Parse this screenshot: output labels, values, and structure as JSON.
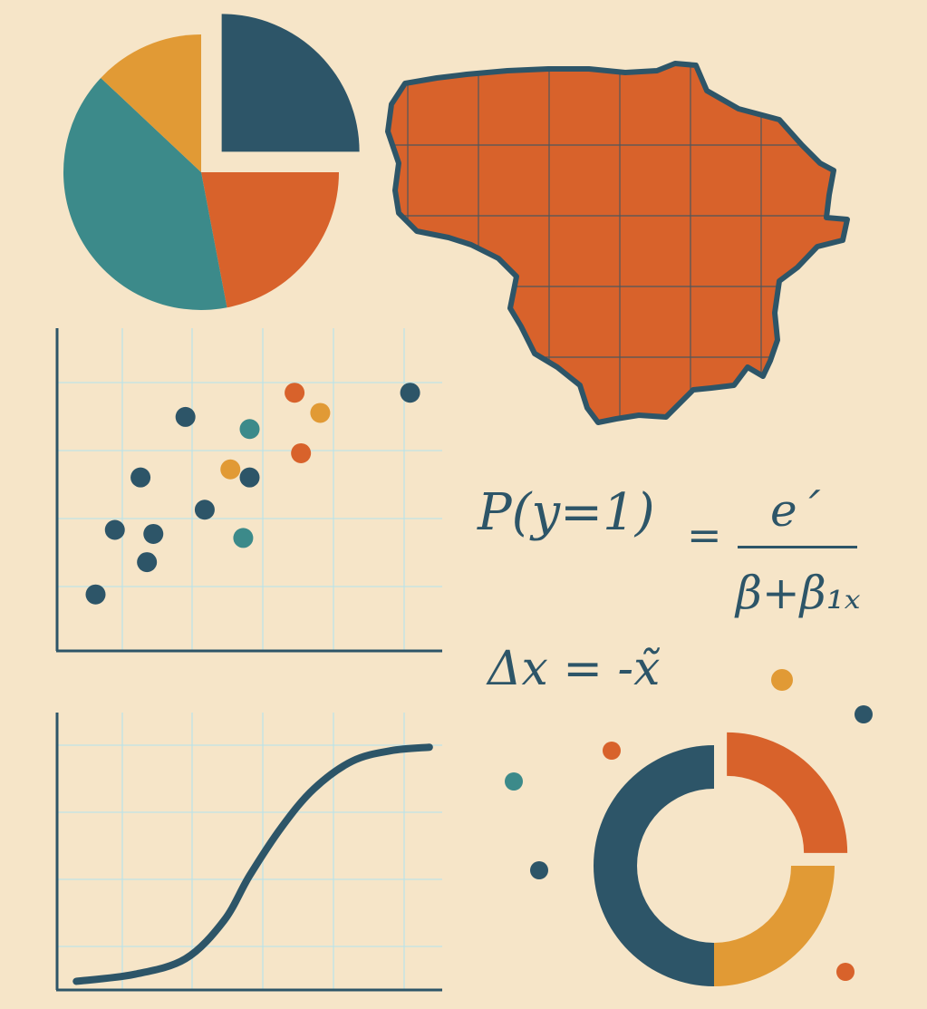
{
  "colors": {
    "background": "#f6e5c8",
    "navy": "#2d5568",
    "teal": "#3c8a8a",
    "orange": "#d8622b",
    "gold": "#e19a35",
    "grid": "#bfe3e6"
  },
  "chart_data": [
    {
      "type": "pie",
      "slices": [
        {
          "color": "navy",
          "value": 25,
          "exploded": true
        },
        {
          "color": "orange",
          "value": 22
        },
        {
          "color": "teal",
          "value": 40
        },
        {
          "color": "gold",
          "value": 13
        }
      ]
    },
    {
      "type": "scatter",
      "xlim": [
        0,
        6
      ],
      "ylim": [
        0,
        8
      ],
      "grid": true,
      "points": [
        {
          "x": 0.6,
          "y": 1.4,
          "color": "navy"
        },
        {
          "x": 1.4,
          "y": 2.2,
          "color": "navy"
        },
        {
          "x": 0.9,
          "y": 3.0,
          "color": "navy"
        },
        {
          "x": 1.5,
          "y": 2.9,
          "color": "navy"
        },
        {
          "x": 1.3,
          "y": 4.3,
          "color": "navy"
        },
        {
          "x": 2.3,
          "y": 3.5,
          "color": "navy"
        },
        {
          "x": 2.0,
          "y": 5.8,
          "color": "navy"
        },
        {
          "x": 3.0,
          "y": 4.3,
          "color": "navy"
        },
        {
          "x": 5.5,
          "y": 6.4,
          "color": "navy"
        },
        {
          "x": 2.7,
          "y": 4.5,
          "color": "gold"
        },
        {
          "x": 4.1,
          "y": 5.9,
          "color": "gold"
        },
        {
          "x": 2.9,
          "y": 2.8,
          "color": "teal"
        },
        {
          "x": 3.0,
          "y": 5.5,
          "color": "teal"
        },
        {
          "x": 3.7,
          "y": 6.4,
          "color": "orange"
        },
        {
          "x": 3.8,
          "y": 4.9,
          "color": "orange"
        }
      ]
    },
    {
      "type": "line",
      "xlim": [
        0,
        6
      ],
      "ylim": [
        0,
        8
      ],
      "grid": true,
      "series": [
        {
          "color": "navy",
          "x": [
            0.3,
            1.2,
            2.0,
            2.6,
            3.0,
            3.5,
            4.0,
            4.6,
            5.2,
            5.8
          ],
          "y": [
            0.25,
            0.45,
            0.9,
            2.0,
            3.3,
            4.7,
            5.8,
            6.6,
            6.9,
            7.0
          ]
        }
      ]
    },
    {
      "type": "pie",
      "donut": true,
      "slices": [
        {
          "color": "orange",
          "value": 25,
          "exploded": true
        },
        {
          "color": "gold",
          "value": 25
        },
        {
          "color": "navy",
          "value": 50
        }
      ]
    }
  ],
  "equations": {
    "eq1_lhs": "P(y=1)",
    "eq1_equals": "=",
    "eq1_numerator": "e´",
    "eq1_denominator": "β+β₁ₓ",
    "eq2": "Δx = -x̃"
  },
  "decor_dots": [
    {
      "color": "gold"
    },
    {
      "color": "navy"
    },
    {
      "color": "orange"
    },
    {
      "color": "teal"
    },
    {
      "color": "navy"
    },
    {
      "color": "orange"
    }
  ]
}
